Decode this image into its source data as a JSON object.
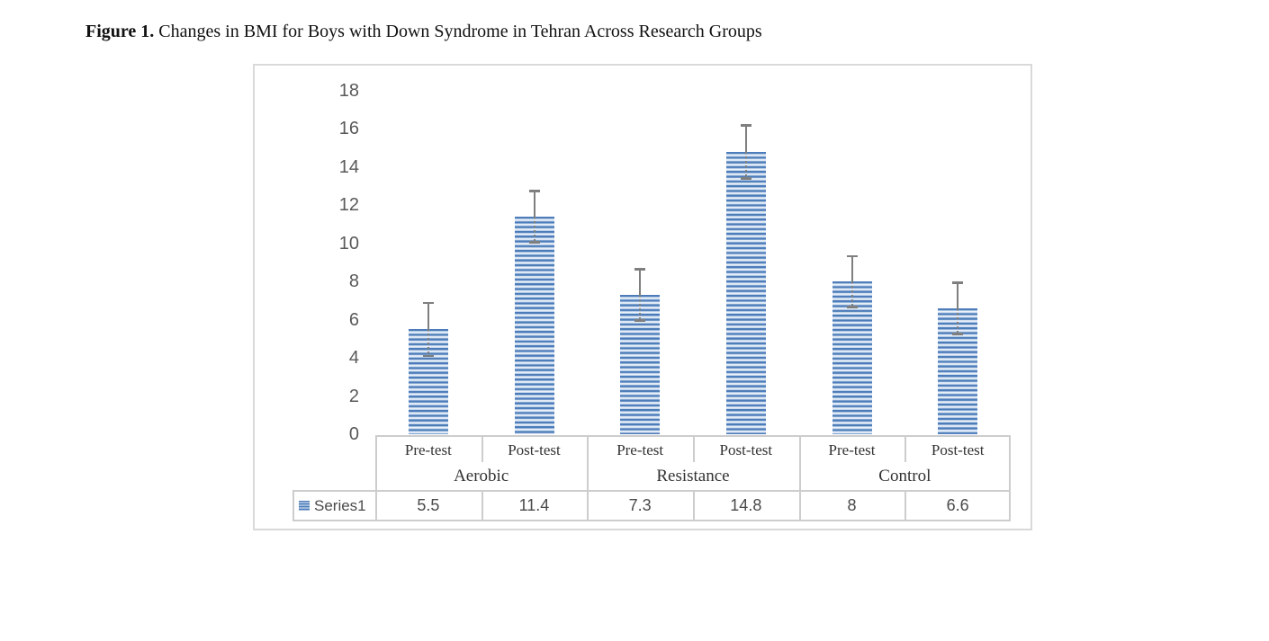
{
  "figure": {
    "caption_label": "Figure 1.",
    "caption_text": " Changes in BMI for Boys with Down Syndrome in Tehran Across Research Groups"
  },
  "chart_data": {
    "type": "bar",
    "title": "Changes in BMI for Boys with Down Syndrome in Tehran Across Research Groups",
    "categories": [
      "Pre-test",
      "Post-test",
      "Pre-test",
      "Post-test",
      "Pre-test",
      "Post-test"
    ],
    "groups": [
      {
        "label": "Aerobic",
        "span": 2
      },
      {
        "label": "Resistance",
        "span": 2
      },
      {
        "label": "Control",
        "span": 2
      }
    ],
    "series": [
      {
        "name": "Series1",
        "values": [
          5.5,
          11.4,
          7.3,
          14.8,
          8,
          6.6
        ],
        "value_labels": [
          "5.5",
          "11.4",
          "7.3",
          "14.8",
          "8",
          "6.6"
        ],
        "errors": [
          1.45,
          1.4,
          1.4,
          1.45,
          1.4,
          1.4
        ]
      }
    ],
    "y_axis": {
      "min": 0,
      "max": 18,
      "step": 2,
      "ticks": [
        18,
        16,
        14,
        12,
        10,
        8,
        6,
        4,
        2,
        0
      ]
    },
    "gridlines": false,
    "legend_position": "data-table",
    "colors": {
      "bar_dark": "#4c7cb9",
      "bar_light": "#f1f5fb",
      "error_bar": "#7f7f7f",
      "axis_text": "#595959",
      "table_border": "#cdcdcd",
      "chart_border": "#d9d9d9"
    }
  }
}
